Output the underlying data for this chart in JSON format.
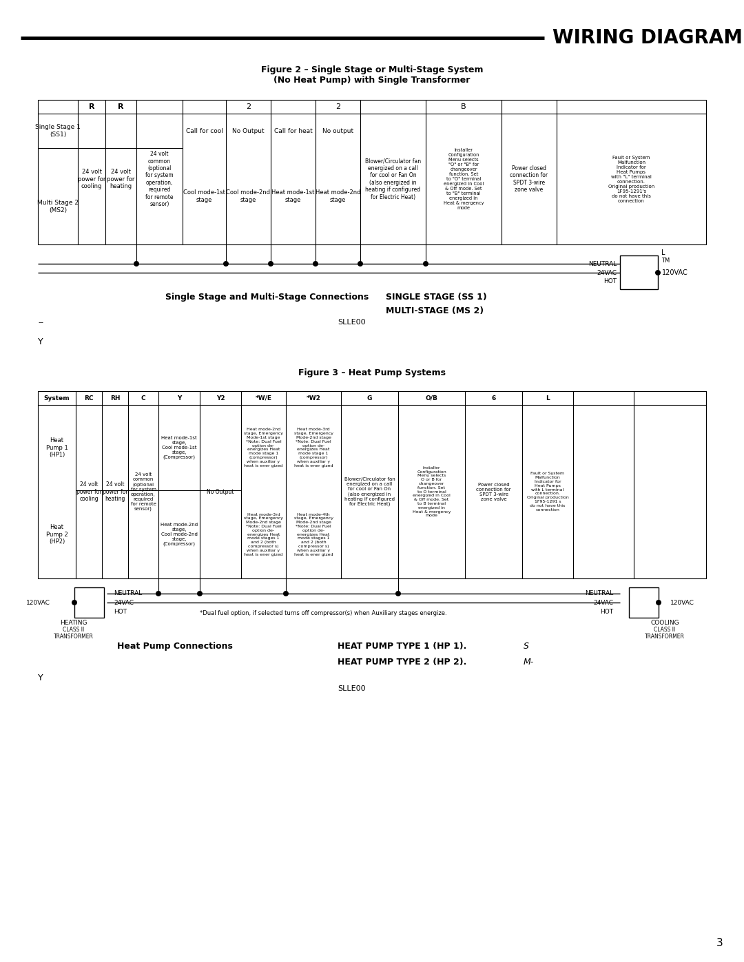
{
  "title": "WIRING DIAGRAMS",
  "fig2_title": "Figure 2 – Single Stage or Multi-Stage System\n(No Heat Pump) with Single Transformer",
  "fig3_title": "Figure 3 – Heat Pump Systems",
  "page_number": "3",
  "bg_color": "#ffffff",
  "fig2_col4_text": "24 volt\ncommon\n(optional\nfor system\noperation,\nrequired\nfor remote\nsensor)",
  "fig2_col9_text": "Blower/Circulator fan\nenergized on a call\nfor cool or Fan On\n(also energized in\nheating if configured\nfor Electric Heat)",
  "fig2_col10_text": "Installer\nConfiguration\nMenu selects\n\"O\" or \"B\" for\nchangeover\nfunction. Set\nto \"O\" terminal\nenergized in Cool\n& Off mode. Set\nto \"B\" terminal\nenergized in\nHeat & mergency\nmode",
  "fig2_col11_text": "Power closed\nconnection for\nSPDT 3-wire\nzone valve",
  "fig2_col12_text": "Fault or System\nMalfunction\nIndicator for\nHeat Pumps\nwith \"L\" terminal\nconnection.\nOriginal production\n1F95-1291's\ndo not have this\nconnection",
  "fig3_col10_text": "Blower/Circulator fan\nenergized on a call\nfor cool or Fan On\n(also energized in\nheating if configured\nfor Electric Heat)",
  "fig3_col11_text": "Installer\nConfiguration\nMenu selects\nO or B for\nchangeover\nfunction. Set\nto O terminal\nenergized in Cool\n& Off mode. Set\nto B terminal\nenergized in\nHeat & mergency\nmode",
  "fig3_col12_text": "Power closed\nconnection for\nSPDT 3-wire\nzone valve",
  "fig3_col13_text": "Fault or System\nMalfunction\nIndicator for\nHeat Pumps\nwith L terminal\nconnection.\nOriginal production\n1F95-1291 s\ndo not have this\nconnection",
  "fig3_dual_note": "*Dual fuel option, if selected turns off compressor(s) when Auxiliary stages energize."
}
